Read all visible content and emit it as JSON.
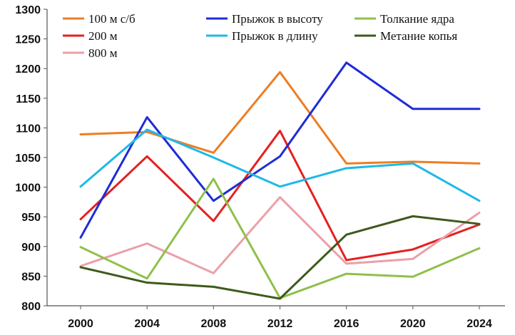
{
  "chart_data": {
    "type": "line",
    "x": [
      2000,
      2004,
      2008,
      2012,
      2016,
      2020,
      2024
    ],
    "ylim": [
      800,
      1300
    ],
    "ytick_step": 50,
    "legend_placement": "top",
    "grid": false,
    "series": [
      {
        "name": "100 м с/б",
        "color": "#ee7d22",
        "values": [
          1089,
          1093,
          1058,
          1194,
          1040,
          1043,
          1040
        ]
      },
      {
        "name": "200 м",
        "color": "#e52020",
        "values": [
          946,
          1052,
          943,
          1095,
          877,
          895,
          937
        ]
      },
      {
        "name": "800 м",
        "color": "#eaa0a8",
        "values": [
          867,
          905,
          855,
          983,
          871,
          879,
          957
        ]
      },
      {
        "name": "Прыжок в высоту",
        "color": "#1f2bd6",
        "values": [
          915,
          1118,
          977,
          1052,
          1210,
          1132,
          1132
        ]
      },
      {
        "name": "Прыжок в длину",
        "color": "#1fb8e8",
        "values": [
          1001,
          1097,
          1050,
          1001,
          1032,
          1040,
          977
        ]
      },
      {
        "name": "Толкание ядра",
        "color": "#8fc04a",
        "values": [
          899,
          846,
          1014,
          813,
          854,
          849,
          897
        ]
      },
      {
        "name": "Метание копья",
        "color": "#3e5a1c",
        "values": [
          865,
          839,
          832,
          812,
          920,
          951,
          938
        ]
      }
    ]
  }
}
